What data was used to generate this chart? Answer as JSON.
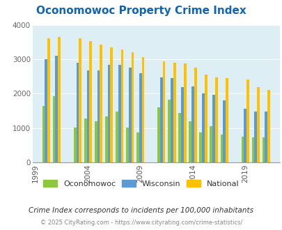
{
  "title": "Oconomowoc Property Crime Index",
  "title_color": "#1464b4",
  "subtitle": "Crime Index corresponds to incidents per 100,000 inhabitants",
  "footer": "© 2025 CityRating.com - https://www.cityrating.com/crime-statistics/",
  "years": [
    2000,
    2001,
    2003,
    2004,
    2005,
    2006,
    2007,
    2008,
    2009,
    2011,
    2012,
    2013,
    2014,
    2015,
    2016,
    2017,
    2019,
    2020,
    2021
  ],
  "ocon_vals": [
    1640,
    1920,
    1020,
    1270,
    1200,
    1340,
    1480,
    1020,
    870,
    1600,
    1830,
    1430,
    1200,
    870,
    1050,
    800,
    750,
    730,
    730
  ],
  "wisc_vals": [
    3000,
    3100,
    2900,
    2680,
    2680,
    2850,
    2850,
    2760,
    2600,
    2470,
    2460,
    2200,
    2210,
    2010,
    1960,
    1810,
    1570,
    1490,
    1490
  ],
  "natl_vals": [
    3620,
    3660,
    3610,
    3530,
    3430,
    3360,
    3290,
    3220,
    3060,
    2950,
    2900,
    2880,
    2760,
    2550,
    2470,
    2460,
    2420,
    2200,
    2110
  ],
  "oconomowoc_color": "#8dc63f",
  "wisconsin_color": "#5b9bd5",
  "national_color": "#ffc000",
  "plot_bg_color": "#ddeef5",
  "grid_color": "#ffffff",
  "ylim": [
    0,
    4000
  ],
  "yticks": [
    0,
    1000,
    2000,
    3000,
    4000
  ],
  "xtick_years": [
    1999,
    2004,
    2009,
    2014,
    2019
  ],
  "bar_width": 0.25,
  "legend_labels": [
    "Oconomowoc",
    "Wisconsin",
    "National"
  ]
}
